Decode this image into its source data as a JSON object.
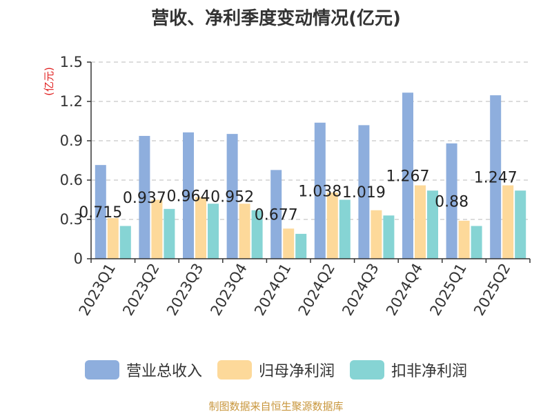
{
  "title": "营收、净利季度变动情况(亿元)",
  "source": "制图数据来自恒生聚源数据库",
  "chart_data": {
    "type": "bar",
    "title": "营收、净利季度变动情况(亿元)",
    "ylabel": "(亿元)",
    "ylabel_color": "#e02020",
    "ylim": [
      0,
      1.5
    ],
    "yticks": [
      "0",
      "0.3",
      "0.6",
      "0.9",
      "1.2",
      "1.5"
    ],
    "ytick_values": [
      0,
      0.3,
      0.6,
      0.9,
      1.2,
      1.5
    ],
    "grid": true,
    "legend_position": "bottom",
    "categories": [
      "2023Q1",
      "2023Q2",
      "2023Q3",
      "2023Q4",
      "2024Q1",
      "2024Q2",
      "2024Q3",
      "2024Q4",
      "2025Q1",
      "2025Q2"
    ],
    "series": [
      {
        "name": "营业总收入",
        "color": "#8eaedd",
        "values": [
          0.715,
          0.937,
          0.964,
          0.952,
          0.677,
          1.038,
          1.019,
          1.267,
          0.88,
          1.247
        ],
        "labels": [
          "0.715",
          "0.937",
          "0.964",
          "0.952",
          "0.677",
          "1.038",
          "1.019",
          "1.267",
          "0.88",
          "1.247"
        ]
      },
      {
        "name": "归母净利润",
        "color": "#fdd99a",
        "values": [
          0.31,
          0.45,
          0.47,
          0.42,
          0.23,
          0.505,
          0.37,
          0.56,
          0.29,
          0.56
        ]
      },
      {
        "name": "扣非净利润",
        "color": "#86d4d4",
        "values": [
          0.25,
          0.38,
          0.42,
          0.37,
          0.19,
          0.45,
          0.33,
          0.52,
          0.25,
          0.52
        ]
      }
    ]
  }
}
